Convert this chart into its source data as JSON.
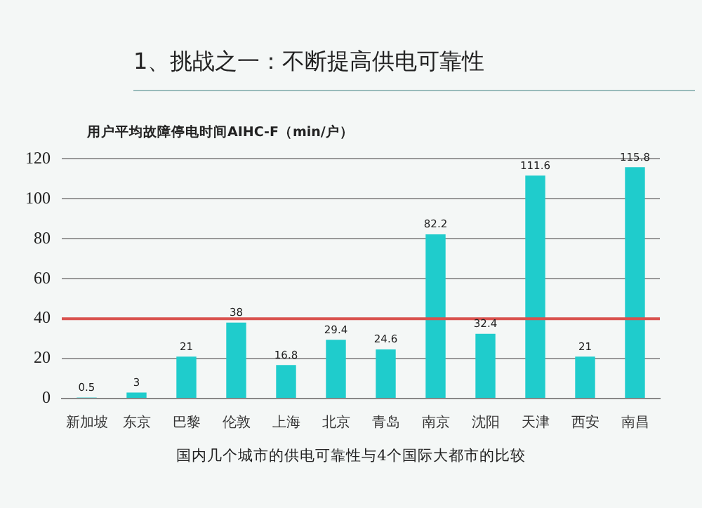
{
  "chart_data": {
    "type": "bar",
    "title": "1、挑战之一：不断提高供电可靠性",
    "subtitle": "用户平均故障停电时间AIHC-F（min/户）",
    "categories": [
      "新加坡",
      "东京",
      "巴黎",
      "伦敦",
      "上海",
      "北京",
      "青岛",
      "南京",
      "沈阳",
      "天津",
      "西安",
      "南昌"
    ],
    "values": [
      0.5,
      3,
      21,
      38,
      16.8,
      29.4,
      24.6,
      82.2,
      32.4,
      111.6,
      21,
      115.8
    ],
    "color": "#1fcccc",
    "ylim": [
      0,
      120
    ],
    "yticks": [
      0,
      20,
      40,
      60,
      80,
      100,
      120
    ],
    "grid": "y",
    "data_labels": true,
    "legend": false,
    "ref_lines": [
      {
        "axis": "y",
        "value": 40,
        "color": "#d9534f"
      }
    ],
    "annotations": [
      "国内几个城市的供电可靠性与4个国际大都市的比较"
    ]
  }
}
